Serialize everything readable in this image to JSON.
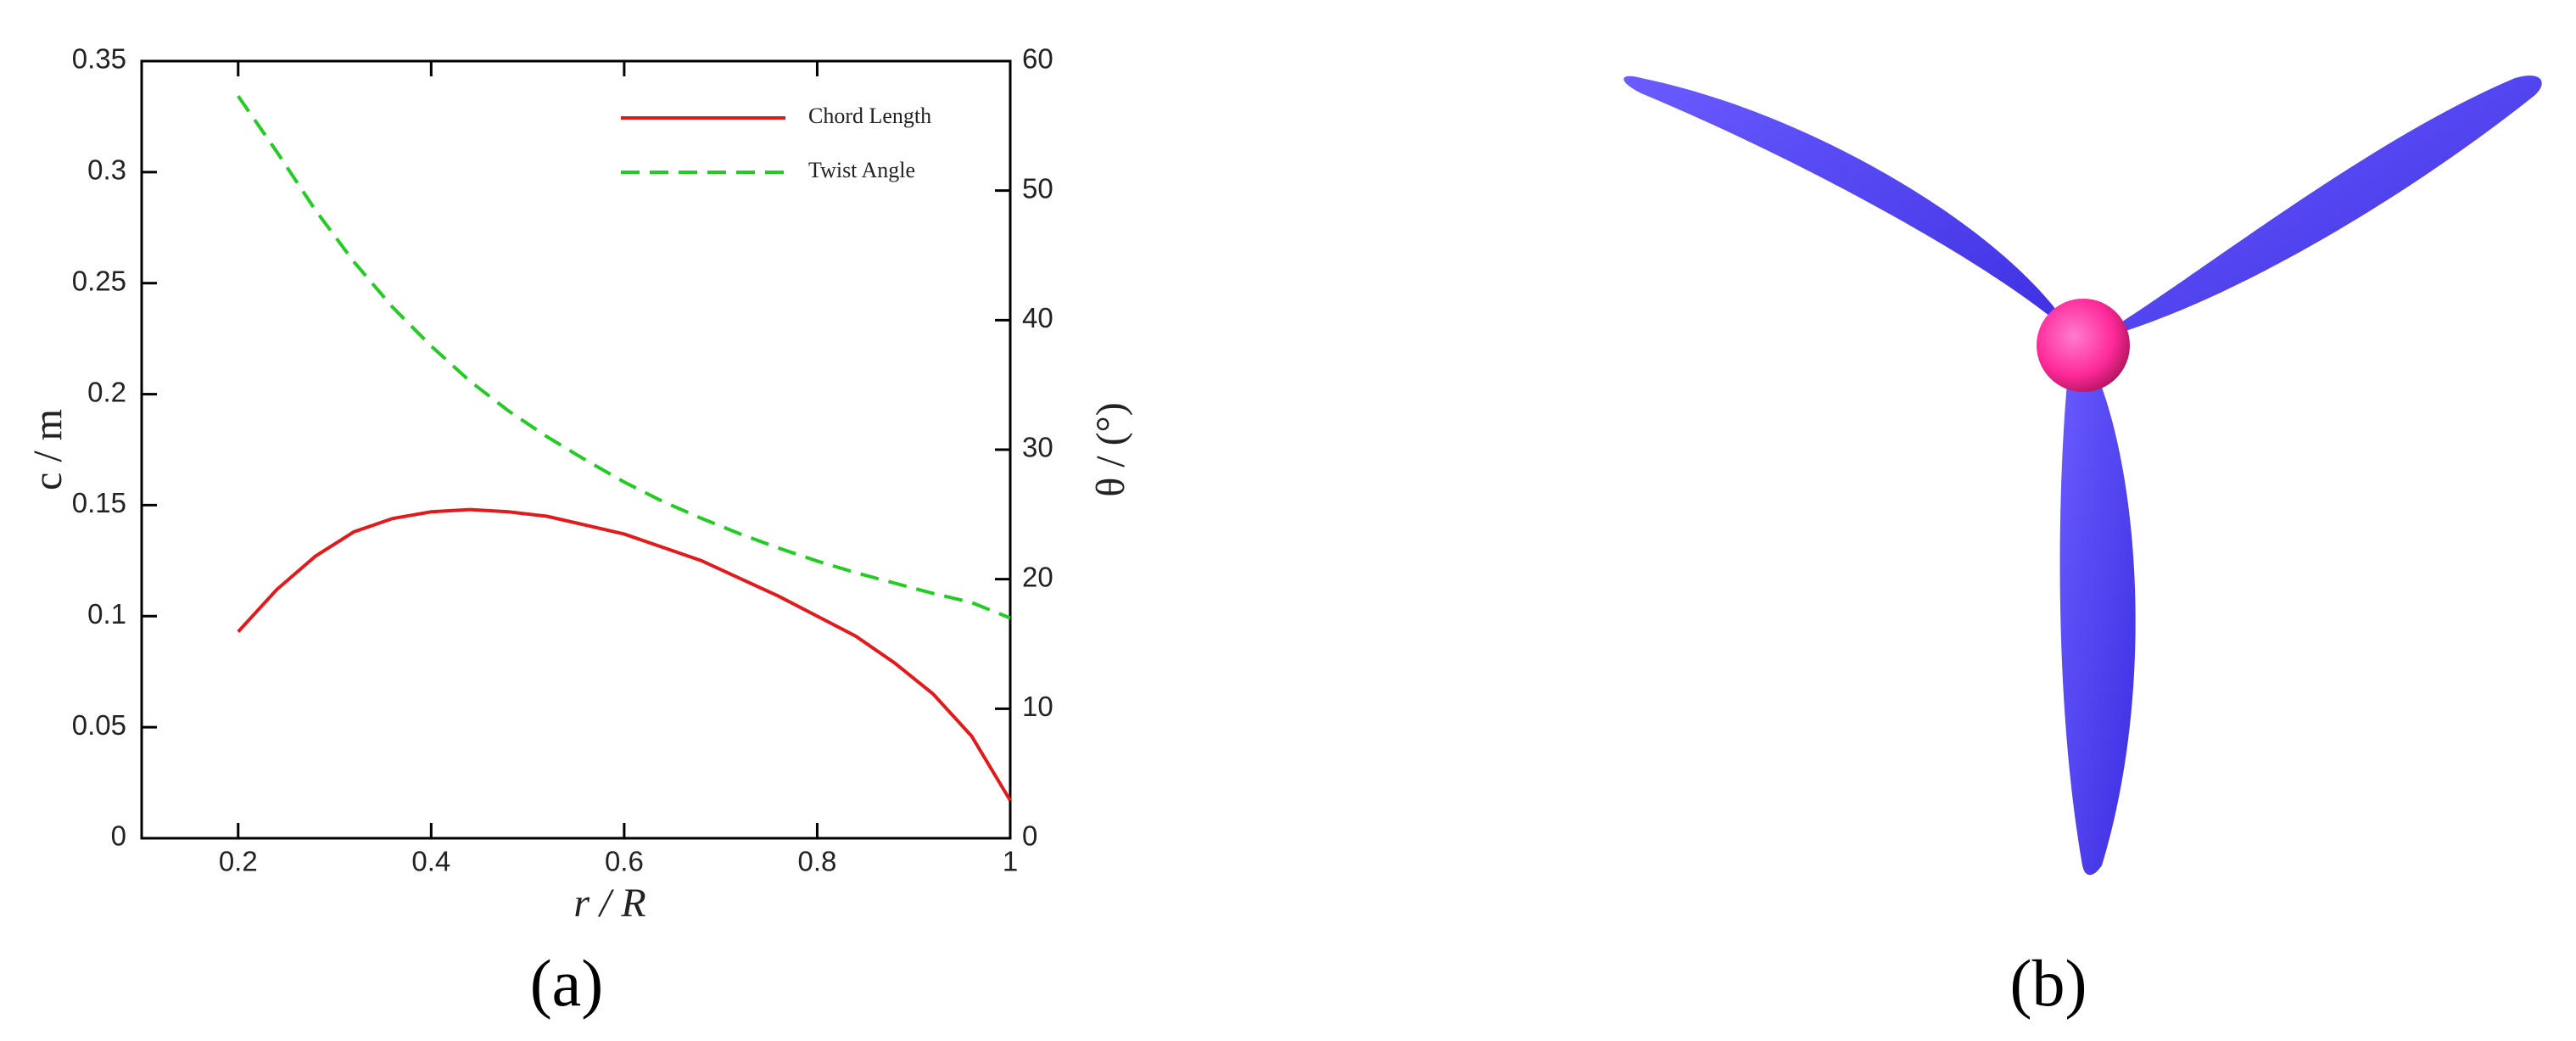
{
  "chart_data": {
    "type": "line",
    "x_label": "r / R",
    "y_label": "c / m",
    "y2_label": "θ / (°)",
    "x": [
      0.2,
      0.24,
      0.28,
      0.32,
      0.36,
      0.4,
      0.44,
      0.48,
      0.52,
      0.56,
      0.6,
      0.64,
      0.68,
      0.72,
      0.76,
      0.8,
      0.84,
      0.88,
      0.92,
      0.96,
      1.0
    ],
    "series": [
      {
        "name": "Chord Length",
        "color": "#e31a1c",
        "linestyle": "solid",
        "axis": "y",
        "values": [
          0.093,
          0.112,
          0.127,
          0.138,
          0.144,
          0.147,
          0.148,
          0.147,
          0.145,
          0.141,
          0.137,
          0.131,
          0.125,
          0.117,
          0.109,
          0.1,
          0.091,
          0.079,
          0.065,
          0.046,
          0.017
        ]
      },
      {
        "name": "Twist Angle",
        "color": "#22cc22",
        "linestyle": "dashed",
        "axis": "y2",
        "values": [
          57.3,
          53,
          48.5,
          44.5,
          41,
          38,
          35.3,
          33,
          31,
          29.2,
          27.5,
          26,
          24.7,
          23.5,
          22.4,
          21.4,
          20.5,
          19.7,
          18.9,
          18.2,
          17
        ]
      }
    ],
    "xlim": [
      0.1,
      1
    ],
    "xticks": [
      0.2,
      0.4,
      0.6,
      0.8,
      1
    ],
    "ylim": [
      0,
      0.35
    ],
    "yticks": [
      0,
      0.05,
      0.1,
      0.15,
      0.2,
      0.25,
      0.3,
      0.35
    ],
    "y2lim": [
      0,
      60
    ],
    "y2ticks": [
      0,
      10,
      20,
      30,
      40,
      50,
      60
    ],
    "legend": "upper right",
    "grid": false
  },
  "panel_labels": [
    "(a)",
    "(b)"
  ]
}
